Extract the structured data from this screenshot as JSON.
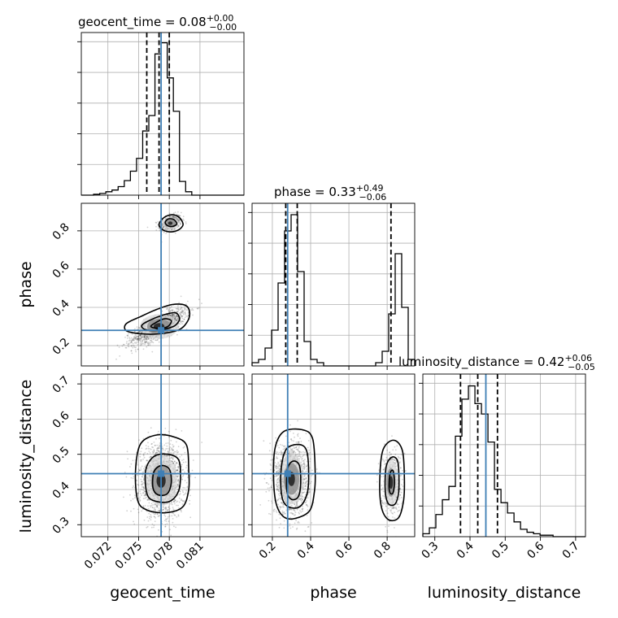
{
  "chart_data": {
    "type": "corner",
    "parameters": [
      "geocent_time",
      "phase",
      "luminosity_distance"
    ],
    "truths": {
      "geocent_time": 0.0772,
      "phase": 0.28,
      "luminosity_distance": 0.445
    },
    "ranges": {
      "geocent_time": [
        0.0694,
        0.0853
      ],
      "phase": [
        0.094,
        0.944
      ],
      "luminosity_distance": [
        0.266,
        0.728
      ]
    },
    "ticks": {
      "geocent_time": [
        0.072,
        0.075,
        0.078,
        0.081
      ],
      "phase": [
        0.2,
        0.4,
        0.6,
        0.8
      ],
      "luminosity_distance": [
        0.3,
        0.4,
        0.5,
        0.6,
        0.7
      ]
    },
    "tick_labels": {
      "geocent_time": [
        "0.072",
        "0.075",
        "0.078",
        "0.081"
      ],
      "phase": [
        "0.2",
        "0.4",
        "0.6",
        "0.8"
      ],
      "luminosity_distance": [
        "0.3",
        "0.4",
        "0.5",
        "0.6",
        "0.7"
      ]
    },
    "diag": [
      {
        "param": "geocent_time",
        "title_main": "geocent_time = 0.08",
        "title_plus": "+0.00",
        "title_minus": "−0.00",
        "quantiles": [
          0.0758,
          0.077,
          0.078
        ],
        "bin_edges": [
          0.0694,
          0.07,
          0.0706,
          0.0712,
          0.0718,
          0.0724,
          0.073,
          0.0736,
          0.0742,
          0.0748,
          0.0754,
          0.076,
          0.0766,
          0.0772,
          0.0778,
          0.0784,
          0.079,
          0.0796,
          0.0802,
          0.0808,
          0.0814,
          0.082,
          0.0826,
          0.0832,
          0.0838,
          0.0844,
          0.0853
        ],
        "counts": [
          0,
          0,
          1,
          2,
          4,
          6,
          10,
          17,
          28,
          43,
          75,
          93,
          165,
          178,
          137,
          98,
          16,
          4,
          0,
          0,
          0,
          0,
          0,
          0,
          0,
          0
        ],
        "ymax": 190
      },
      {
        "param": "phase",
        "title_main": "phase = 0.33",
        "title_plus": "+0.49",
        "title_minus": "−0.06",
        "quantiles": [
          0.27,
          0.33,
          0.82
        ],
        "bin_edges": [
          0.094,
          0.128,
          0.162,
          0.196,
          0.23,
          0.264,
          0.298,
          0.332,
          0.366,
          0.4,
          0.434,
          0.468,
          0.502,
          0.536,
          0.57,
          0.604,
          0.638,
          0.672,
          0.706,
          0.74,
          0.774,
          0.808,
          0.842,
          0.876,
          0.91,
          0.944
        ],
        "counts": [
          2,
          4,
          11,
          22,
          51,
          83,
          93,
          58,
          15,
          4,
          2,
          0,
          0,
          0,
          0,
          0,
          0,
          0,
          0,
          2,
          9,
          32,
          69,
          36,
          4
        ],
        "ymax": 100
      },
      {
        "param": "luminosity_distance",
        "title_main": "luminosity_distance = 0.42",
        "title_plus": "+0.06",
        "title_minus": "−0.05",
        "quantiles": [
          0.373,
          0.422,
          0.478
        ],
        "bin_edges": [
          0.266,
          0.2845,
          0.303,
          0.3215,
          0.34,
          0.3585,
          0.377,
          0.3955,
          0.414,
          0.4325,
          0.451,
          0.4695,
          0.488,
          0.5065,
          0.525,
          0.5435,
          0.562,
          0.5805,
          0.599,
          0.6175,
          0.636,
          0.6545,
          0.673,
          0.6915,
          0.71,
          0.728
        ],
        "counts": [
          2,
          6,
          15,
          25,
          34,
          68,
          93,
          102,
          90,
          83,
          64,
          32,
          23,
          16,
          10,
          5,
          3,
          2,
          1,
          1,
          0,
          0,
          0,
          0,
          0
        ],
        "ymax": 110
      }
    ],
    "pairs": [
      {
        "x": "geocent_time",
        "y": "phase",
        "modes": [
          {
            "cx": 0.0781,
            "cy": 0.84,
            "sx": 0.00055,
            "sy": 0.022,
            "rho": 0.35,
            "n": 420
          },
          {
            "cx": 0.077,
            "cy": 0.3,
            "sx": 0.0013,
            "sy": 0.045,
            "rho": 0.75,
            "n": 1400
          }
        ],
        "contours": [
          [
            [
              0.0793,
              0.845
            ],
            [
              0.0789,
              0.873
            ],
            [
              0.0783,
              0.884
            ],
            [
              0.0775,
              0.87
            ],
            [
              0.077,
              0.835
            ],
            [
              0.0773,
              0.808
            ],
            [
              0.078,
              0.795
            ],
            [
              0.0788,
              0.802
            ],
            [
              0.0793,
              0.825
            ]
          ],
          [
            [
              0.0787,
              0.843
            ],
            [
              0.0784,
              0.86
            ],
            [
              0.0779,
              0.862
            ],
            [
              0.0776,
              0.845
            ],
            [
              0.0778,
              0.828
            ],
            [
              0.0783,
              0.823
            ],
            [
              0.0787,
              0.833
            ]
          ],
          [
            [
              0.08,
              0.37
            ],
            [
              0.0796,
              0.41
            ],
            [
              0.0783,
              0.415
            ],
            [
              0.0768,
              0.39
            ],
            [
              0.0752,
              0.352
            ],
            [
              0.0738,
              0.315
            ],
            [
              0.0738,
              0.278
            ],
            [
              0.0752,
              0.262
            ],
            [
              0.0771,
              0.262
            ],
            [
              0.0789,
              0.282
            ],
            [
              0.0797,
              0.32
            ]
          ],
          [
            [
              0.079,
              0.345
            ],
            [
              0.0786,
              0.372
            ],
            [
              0.0774,
              0.36
            ],
            [
              0.076,
              0.33
            ],
            [
              0.0753,
              0.305
            ],
            [
              0.0757,
              0.283
            ],
            [
              0.077,
              0.28
            ],
            [
              0.0784,
              0.3
            ],
            [
              0.0789,
              0.325
            ]
          ],
          [
            [
              0.0782,
              0.33
            ],
            [
              0.0775,
              0.34
            ],
            [
              0.0766,
              0.318
            ],
            [
              0.0762,
              0.3
            ],
            [
              0.0768,
              0.291
            ],
            [
              0.0778,
              0.298
            ]
          ]
        ]
      },
      {
        "x": "geocent_time",
        "y": "luminosity_distance",
        "modes": [
          {
            "cx": 0.0772,
            "cy": 0.425,
            "sx": 0.0011,
            "sy": 0.05,
            "rho": 0.0,
            "n": 1800
          }
        ],
        "contours": [
          [
            [
              0.0799,
              0.455
            ],
            [
              0.0797,
              0.525
            ],
            [
              0.0786,
              0.548
            ],
            [
              0.0768,
              0.555
            ],
            [
              0.0752,
              0.53
            ],
            [
              0.0747,
              0.455
            ],
            [
              0.0749,
              0.37
            ],
            [
              0.0758,
              0.342
            ],
            [
              0.0776,
              0.334
            ],
            [
              0.0793,
              0.35
            ],
            [
              0.0799,
              0.4
            ]
          ],
          [
            [
              0.0791,
              0.44
            ],
            [
              0.0789,
              0.485
            ],
            [
              0.0779,
              0.5
            ],
            [
              0.0765,
              0.494
            ],
            [
              0.0757,
              0.455
            ],
            [
              0.0758,
              0.39
            ],
            [
              0.0765,
              0.368
            ],
            [
              0.078,
              0.366
            ],
            [
              0.0789,
              0.395
            ]
          ],
          [
            [
              0.0782,
              0.42
            ],
            [
              0.078,
              0.458
            ],
            [
              0.0772,
              0.468
            ],
            [
              0.0765,
              0.45
            ],
            [
              0.0764,
              0.405
            ],
            [
              0.0769,
              0.385
            ],
            [
              0.0778,
              0.388
            ]
          ]
        ]
      },
      {
        "x": "phase",
        "y": "luminosity_distance",
        "modes": [
          {
            "cx": 0.3,
            "cy": 0.43,
            "sx": 0.045,
            "sy": 0.05,
            "rho": 0.0,
            "n": 1500
          },
          {
            "cx": 0.82,
            "cy": 0.42,
            "sx": 0.026,
            "sy": 0.045,
            "rho": 0.0,
            "n": 500
          }
        ],
        "contours": [
          [
            [
              0.424,
              0.45
            ],
            [
              0.41,
              0.545
            ],
            [
              0.355,
              0.57
            ],
            [
              0.26,
              0.565
            ],
            [
              0.215,
              0.52
            ],
            [
              0.206,
              0.44
            ],
            [
              0.22,
              0.36
            ],
            [
              0.26,
              0.322
            ],
            [
              0.32,
              0.318
            ],
            [
              0.395,
              0.34
            ],
            [
              0.42,
              0.395
            ]
          ],
          [
            [
              0.39,
              0.44
            ],
            [
              0.378,
              0.512
            ],
            [
              0.33,
              0.528
            ],
            [
              0.27,
              0.512
            ],
            [
              0.245,
              0.45
            ],
            [
              0.25,
              0.38
            ],
            [
              0.28,
              0.352
            ],
            [
              0.34,
              0.35
            ],
            [
              0.38,
              0.385
            ]
          ],
          [
            [
              0.348,
              0.42
            ],
            [
              0.34,
              0.47
            ],
            [
              0.305,
              0.48
            ],
            [
              0.278,
              0.455
            ],
            [
              0.276,
              0.395
            ],
            [
              0.3,
              0.372
            ],
            [
              0.336,
              0.38
            ]
          ],
          [
            [
              0.89,
              0.43
            ],
            [
              0.88,
              0.51
            ],
            [
              0.835,
              0.54
            ],
            [
              0.78,
              0.515
            ],
            [
              0.762,
              0.44
            ],
            [
              0.768,
              0.355
            ],
            [
              0.805,
              0.315
            ],
            [
              0.86,
              0.32
            ],
            [
              0.886,
              0.37
            ]
          ],
          [
            [
              0.862,
              0.425
            ],
            [
              0.855,
              0.48
            ],
            [
              0.825,
              0.492
            ],
            [
              0.795,
              0.465
            ],
            [
              0.79,
              0.395
            ],
            [
              0.806,
              0.36
            ],
            [
              0.84,
              0.358
            ],
            [
              0.858,
              0.385
            ]
          ],
          [
            [
              0.838,
              0.42
            ],
            [
              0.832,
              0.452
            ],
            [
              0.818,
              0.45
            ],
            [
              0.81,
              0.42
            ],
            [
              0.814,
              0.392
            ],
            [
              0.83,
              0.39
            ]
          ]
        ]
      }
    ]
  }
}
